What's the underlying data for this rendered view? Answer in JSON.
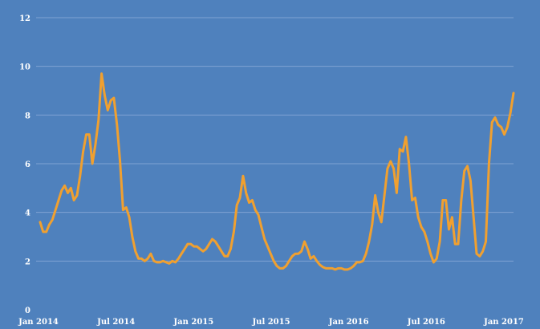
{
  "colors": {
    "background": "#4f81bd",
    "line": "#f0a030",
    "grid": "#7fa3d3",
    "text": "#ffffff"
  },
  "chart_data": {
    "type": "line",
    "title": "",
    "xlabel": "",
    "ylabel": "",
    "ylim": [
      0,
      12
    ],
    "yticks": [
      0,
      2,
      4,
      6,
      8,
      10,
      12
    ],
    "grid": true,
    "legend": "none",
    "x_tick_labels": [
      "Jan 2014",
      "Jul 2014",
      "Jan 2015",
      "Jul 2015",
      "Jan 2016",
      "Jul 2016",
      "Jan 2017"
    ],
    "series": [
      {
        "values": [
          3.6,
          3.2,
          3.2,
          3.5,
          3.7,
          4.1,
          4.5,
          4.9,
          5.1,
          4.8,
          5.0,
          4.5,
          4.7,
          5.5,
          6.5,
          7.2,
          7.2,
          6.0,
          6.8,
          7.8,
          9.7,
          8.8,
          8.2,
          8.6,
          8.7,
          7.6,
          6.1,
          4.1,
          4.2,
          3.8,
          3.0,
          2.4,
          2.1,
          2.1,
          2.0,
          2.1,
          2.3,
          2.0,
          1.95,
          1.95,
          2.0,
          1.95,
          1.9,
          2.0,
          1.95,
          2.1,
          2.3,
          2.5,
          2.7,
          2.7,
          2.6,
          2.6,
          2.5,
          2.4,
          2.5,
          2.7,
          2.9,
          2.8,
          2.6,
          2.4,
          2.2,
          2.2,
          2.5,
          3.2,
          4.3,
          4.6,
          5.5,
          4.8,
          4.4,
          4.5,
          4.1,
          3.9,
          3.4,
          2.9,
          2.6,
          2.3,
          2.0,
          1.8,
          1.7,
          1.7,
          1.8,
          2.0,
          2.2,
          2.3,
          2.3,
          2.4,
          2.8,
          2.5,
          2.1,
          2.2,
          2.0,
          1.85,
          1.75,
          1.7,
          1.7,
          1.7,
          1.65,
          1.7,
          1.7,
          1.65,
          1.65,
          1.7,
          1.8,
          1.95,
          1.95,
          2.0,
          2.3,
          2.8,
          3.5,
          4.7,
          4.0,
          3.6,
          4.7,
          5.8,
          6.1,
          5.8,
          4.8,
          6.6,
          6.5,
          7.1,
          6.0,
          4.5,
          4.6,
          3.8,
          3.4,
          3.2,
          2.8,
          2.3,
          1.95,
          2.1,
          2.8,
          4.5,
          4.5,
          3.3,
          3.8,
          2.7,
          2.7,
          4.5,
          5.7,
          5.9,
          5.3,
          3.8,
          2.3,
          2.2,
          2.4,
          2.8,
          6.0,
          7.7,
          7.9,
          7.6,
          7.5,
          7.2,
          7.5,
          8.1,
          8.9
        ]
      }
    ]
  }
}
